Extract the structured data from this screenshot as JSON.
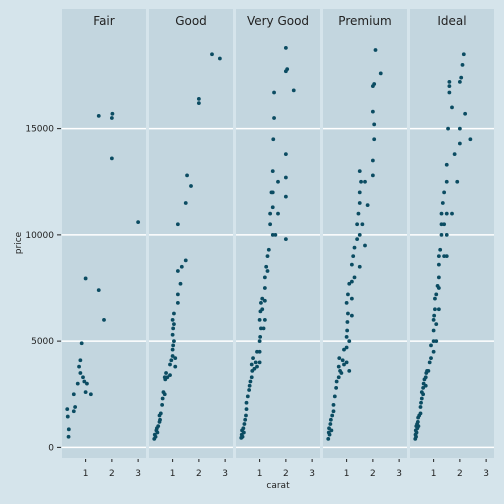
{
  "chart_data": {
    "type": "scatter",
    "facet_by": "cut",
    "xlabel": "carat",
    "ylabel": "price",
    "xlim": [
      0.1,
      3.3
    ],
    "ylim": [
      -500,
      19500
    ],
    "x_ticks": [
      1,
      2,
      3
    ],
    "y_ticks": [
      0,
      5000,
      10000,
      15000
    ],
    "grid": true,
    "colors": {
      "background": "#d5e4eb",
      "panel": "#c3d6df",
      "grid": "#ffffff",
      "point": "#0b4c62",
      "text": "#222222"
    },
    "panels": [
      {
        "label": "Fair",
        "points": [
          [
            0.3,
            1800
          ],
          [
            0.32,
            1450
          ],
          [
            0.36,
            850
          ],
          [
            0.35,
            500
          ],
          [
            0.55,
            1700
          ],
          [
            0.6,
            1900
          ],
          [
            0.55,
            2500
          ],
          [
            0.7,
            3000
          ],
          [
            0.75,
            3800
          ],
          [
            0.8,
            4100
          ],
          [
            0.85,
            4900
          ],
          [
            0.8,
            3500
          ],
          [
            0.9,
            3300
          ],
          [
            0.95,
            3100
          ],
          [
            1.0,
            2600
          ],
          [
            1.05,
            3000
          ],
          [
            1.2,
            2500
          ],
          [
            1.0,
            7950
          ],
          [
            1.5,
            7400
          ],
          [
            1.5,
            15600
          ],
          [
            1.7,
            6000
          ],
          [
            2.0,
            13600
          ],
          [
            2.0,
            15500
          ],
          [
            2.02,
            15700
          ],
          [
            3.0,
            10600
          ]
        ]
      },
      {
        "label": "Good",
        "points": [
          [
            0.3,
            400
          ],
          [
            0.32,
            600
          ],
          [
            0.35,
            500
          ],
          [
            0.38,
            800
          ],
          [
            0.4,
            900
          ],
          [
            0.42,
            700
          ],
          [
            0.45,
            1000
          ],
          [
            0.5,
            1200
          ],
          [
            0.5,
            1500
          ],
          [
            0.52,
            1300
          ],
          [
            0.55,
            1600
          ],
          [
            0.6,
            2000
          ],
          [
            0.62,
            2300
          ],
          [
            0.65,
            2600
          ],
          [
            0.7,
            2500
          ],
          [
            0.7,
            3300
          ],
          [
            0.72,
            3200
          ],
          [
            0.75,
            3500
          ],
          [
            0.8,
            3300
          ],
          [
            0.9,
            3400
          ],
          [
            0.9,
            3900
          ],
          [
            0.95,
            4100
          ],
          [
            1.0,
            4300
          ],
          [
            1.0,
            4600
          ],
          [
            1.02,
            4800
          ],
          [
            1.05,
            5000
          ],
          [
            1.0,
            5300
          ],
          [
            1.02,
            5600
          ],
          [
            1.05,
            5800
          ],
          [
            1.0,
            6000
          ],
          [
            1.05,
            6300
          ],
          [
            1.1,
            4200
          ],
          [
            1.1,
            3800
          ],
          [
            1.2,
            6800
          ],
          [
            1.2,
            7200
          ],
          [
            1.2,
            8300
          ],
          [
            1.3,
            7700
          ],
          [
            1.35,
            8500
          ],
          [
            1.5,
            8800
          ],
          [
            1.2,
            10500
          ],
          [
            1.5,
            11500
          ],
          [
            1.55,
            12800
          ],
          [
            1.7,
            12300
          ],
          [
            2.0,
            16200
          ],
          [
            2.0,
            16400
          ],
          [
            2.5,
            18500
          ],
          [
            2.8,
            18300
          ]
        ]
      },
      {
        "label": "Very Good",
        "points": [
          [
            0.3,
            450
          ],
          [
            0.32,
            600
          ],
          [
            0.33,
            800
          ],
          [
            0.35,
            500
          ],
          [
            0.38,
            900
          ],
          [
            0.4,
            700
          ],
          [
            0.42,
            1100
          ],
          [
            0.45,
            1300
          ],
          [
            0.48,
            1500
          ],
          [
            0.5,
            1800
          ],
          [
            0.5,
            2100
          ],
          [
            0.55,
            2400
          ],
          [
            0.6,
            2700
          ],
          [
            0.62,
            2900
          ],
          [
            0.65,
            3100
          ],
          [
            0.7,
            3300
          ],
          [
            0.72,
            3600
          ],
          [
            0.7,
            3900
          ],
          [
            0.75,
            4200
          ],
          [
            0.8,
            3700
          ],
          [
            0.85,
            4000
          ],
          [
            0.9,
            3800
          ],
          [
            0.9,
            4500
          ],
          [
            1.0,
            4000
          ],
          [
            1.0,
            4500
          ],
          [
            1.0,
            5000
          ],
          [
            1.02,
            5200
          ],
          [
            1.05,
            5600
          ],
          [
            1.0,
            6000
          ],
          [
            1.03,
            6400
          ],
          [
            1.05,
            6800
          ],
          [
            1.1,
            7000
          ],
          [
            1.1,
            6500
          ],
          [
            1.15,
            5600
          ],
          [
            1.2,
            6000
          ],
          [
            1.2,
            6900
          ],
          [
            1.2,
            7500
          ],
          [
            1.2,
            8000
          ],
          [
            1.25,
            8500
          ],
          [
            1.3,
            8300
          ],
          [
            1.3,
            9000
          ],
          [
            1.35,
            9300
          ],
          [
            1.4,
            10500
          ],
          [
            1.4,
            11000
          ],
          [
            1.45,
            12000
          ],
          [
            1.5,
            10000
          ],
          [
            1.5,
            11300
          ],
          [
            1.5,
            12000
          ],
          [
            1.5,
            13000
          ],
          [
            1.52,
            14500
          ],
          [
            1.55,
            15500
          ],
          [
            1.55,
            16700
          ],
          [
            1.6,
            10000
          ],
          [
            1.7,
            11000
          ],
          [
            1.7,
            12500
          ],
          [
            2.0,
            9800
          ],
          [
            2.0,
            11800
          ],
          [
            2.0,
            12700
          ],
          [
            2.0,
            13800
          ],
          [
            2.0,
            17700
          ],
          [
            2.05,
            17800
          ],
          [
            2.0,
            18800
          ],
          [
            2.3,
            16800
          ]
        ]
      },
      {
        "label": "Premium",
        "points": [
          [
            0.3,
            400
          ],
          [
            0.32,
            700
          ],
          [
            0.33,
            900
          ],
          [
            0.35,
            600
          ],
          [
            0.38,
            1100
          ],
          [
            0.4,
            1300
          ],
          [
            0.42,
            800
          ],
          [
            0.45,
            1500
          ],
          [
            0.5,
            1700
          ],
          [
            0.5,
            2000
          ],
          [
            0.55,
            2400
          ],
          [
            0.6,
            2800
          ],
          [
            0.62,
            3100
          ],
          [
            0.7,
            3300
          ],
          [
            0.7,
            3800
          ],
          [
            0.72,
            4200
          ],
          [
            0.75,
            3600
          ],
          [
            0.8,
            3500
          ],
          [
            0.85,
            4100
          ],
          [
            0.9,
            3900
          ],
          [
            0.9,
            4600
          ],
          [
            1.0,
            4000
          ],
          [
            1.0,
            4700
          ],
          [
            1.0,
            5200
          ],
          [
            1.02,
            5500
          ],
          [
            1.03,
            5900
          ],
          [
            1.05,
            6300
          ],
          [
            1.0,
            6800
          ],
          [
            1.05,
            7200
          ],
          [
            1.1,
            7700
          ],
          [
            1.1,
            5000
          ],
          [
            1.1,
            3600
          ],
          [
            1.2,
            6200
          ],
          [
            1.2,
            7000
          ],
          [
            1.2,
            7800
          ],
          [
            1.2,
            8600
          ],
          [
            1.25,
            9000
          ],
          [
            1.3,
            9400
          ],
          [
            1.3,
            8000
          ],
          [
            1.4,
            9800
          ],
          [
            1.4,
            10500
          ],
          [
            1.45,
            11000
          ],
          [
            1.5,
            8500
          ],
          [
            1.5,
            10000
          ],
          [
            1.5,
            11500
          ],
          [
            1.5,
            12000
          ],
          [
            1.5,
            13000
          ],
          [
            1.55,
            12500
          ],
          [
            1.6,
            10500
          ],
          [
            1.7,
            9500
          ],
          [
            1.7,
            12500
          ],
          [
            1.8,
            11400
          ],
          [
            2.0,
            12800
          ],
          [
            2.0,
            13500
          ],
          [
            2.05,
            14500
          ],
          [
            2.05,
            15200
          ],
          [
            2.0,
            15800
          ],
          [
            2.0,
            17000
          ],
          [
            2.05,
            17100
          ],
          [
            2.1,
            18700
          ],
          [
            2.3,
            17600
          ]
        ]
      },
      {
        "label": "Ideal",
        "points": [
          [
            0.3,
            400
          ],
          [
            0.31,
            600
          ],
          [
            0.32,
            800
          ],
          [
            0.33,
            500
          ],
          [
            0.34,
            1000
          ],
          [
            0.35,
            700
          ],
          [
            0.37,
            1100
          ],
          [
            0.38,
            900
          ],
          [
            0.4,
            1200
          ],
          [
            0.41,
            1400
          ],
          [
            0.42,
            1000
          ],
          [
            0.45,
            1500
          ],
          [
            0.5,
            1600
          ],
          [
            0.5,
            1900
          ],
          [
            0.52,
            2100
          ],
          [
            0.55,
            2300
          ],
          [
            0.55,
            2600
          ],
          [
            0.6,
            2500
          ],
          [
            0.6,
            2800
          ],
          [
            0.62,
            3000
          ],
          [
            0.65,
            3200
          ],
          [
            0.7,
            2900
          ],
          [
            0.7,
            3300
          ],
          [
            0.72,
            3500
          ],
          [
            0.75,
            3600
          ],
          [
            0.8,
            3600
          ],
          [
            0.85,
            4000
          ],
          [
            0.9,
            4200
          ],
          [
            0.9,
            4800
          ],
          [
            1.0,
            4500
          ],
          [
            1.0,
            5000
          ],
          [
            1.0,
            5500
          ],
          [
            1.0,
            6000
          ],
          [
            1.02,
            6200
          ],
          [
            1.05,
            6500
          ],
          [
            1.05,
            7000
          ],
          [
            1.1,
            7200
          ],
          [
            1.1,
            5800
          ],
          [
            1.1,
            5000
          ],
          [
            1.15,
            7600
          ],
          [
            1.2,
            6500
          ],
          [
            1.2,
            7500
          ],
          [
            1.2,
            8000
          ],
          [
            1.2,
            8600
          ],
          [
            1.2,
            9000
          ],
          [
            1.25,
            9300
          ],
          [
            1.3,
            10000
          ],
          [
            1.3,
            10500
          ],
          [
            1.3,
            11000
          ],
          [
            1.35,
            11500
          ],
          [
            1.4,
            9000
          ],
          [
            1.4,
            10500
          ],
          [
            1.4,
            12000
          ],
          [
            1.5,
            9000
          ],
          [
            1.5,
            10000
          ],
          [
            1.5,
            11000
          ],
          [
            1.5,
            12500
          ],
          [
            1.5,
            13300
          ],
          [
            1.55,
            15000
          ],
          [
            1.6,
            16700
          ],
          [
            1.6,
            17000
          ],
          [
            1.6,
            17200
          ],
          [
            1.7,
            11000
          ],
          [
            1.7,
            16000
          ],
          [
            1.8,
            13800
          ],
          [
            1.9,
            12500
          ],
          [
            2.0,
            14300
          ],
          [
            2.0,
            15000
          ],
          [
            2.0,
            17200
          ],
          [
            2.05,
            17400
          ],
          [
            2.1,
            18000
          ],
          [
            2.15,
            18500
          ],
          [
            2.2,
            15700
          ],
          [
            2.4,
            14500
          ]
        ]
      }
    ]
  }
}
